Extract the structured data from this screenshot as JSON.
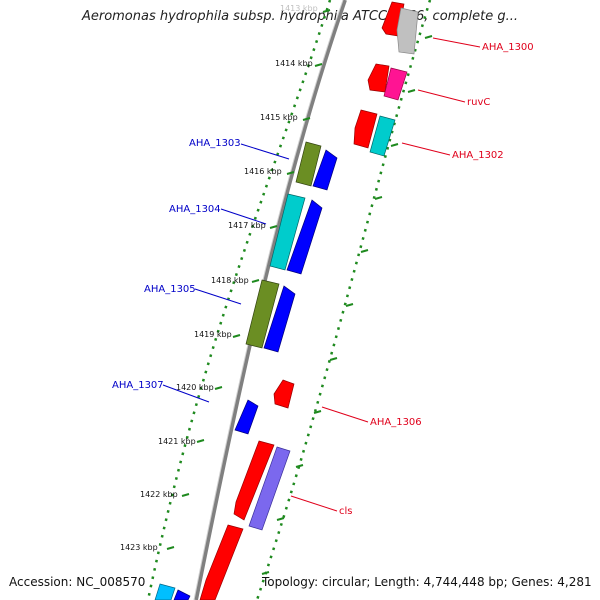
{
  "title": "Aeromonas hydrophila subsp. hydrophila ATCC 7966, complete g...",
  "footer": {
    "accession": "Accession: NC_008570",
    "summary": "Topology: circular; Length: 4,744,448 bp; Genes: 4,281"
  },
  "colors": {
    "background": "#ffffff",
    "backbone": "#808080",
    "tick_dots": "#1f8a1f",
    "label_forward": "#e0001b",
    "label_reverse": "#0000c8",
    "gene_red": "#ff0000",
    "gene_blue": "#0000ff",
    "gene_cyan": "#00cccc",
    "gene_olive": "#6b8e23",
    "gene_magenta": "#ff1493",
    "gene_gray": "#c0c0c0",
    "gene_lavender": "#7b68ee",
    "gene_sky": "#00bfff"
  },
  "ticks": [
    {
      "label": "1413 kbp",
      "faded": true
    },
    {
      "label": "1414 kbp",
      "faded": false
    },
    {
      "label": "1415 kbp",
      "faded": false
    },
    {
      "label": "1416 kbp",
      "faded": false
    },
    {
      "label": "1417 kbp",
      "faded": false
    },
    {
      "label": "1418 kbp",
      "faded": false
    },
    {
      "label": "1419 kbp",
      "faded": false
    },
    {
      "label": "1420 kbp",
      "faded": false
    },
    {
      "label": "1421 kbp",
      "faded": false
    },
    {
      "label": "1422 kbp",
      "faded": false
    },
    {
      "label": "1423 kbp",
      "faded": false
    }
  ],
  "genes_reverse_labels": [
    "AHA_1303",
    "AHA_1304",
    "AHA_1305",
    "AHA_1307"
  ],
  "genes_forward_labels": [
    "AHA_1300",
    "ruvC",
    "AHA_1302",
    "AHA_1306",
    "cls"
  ]
}
